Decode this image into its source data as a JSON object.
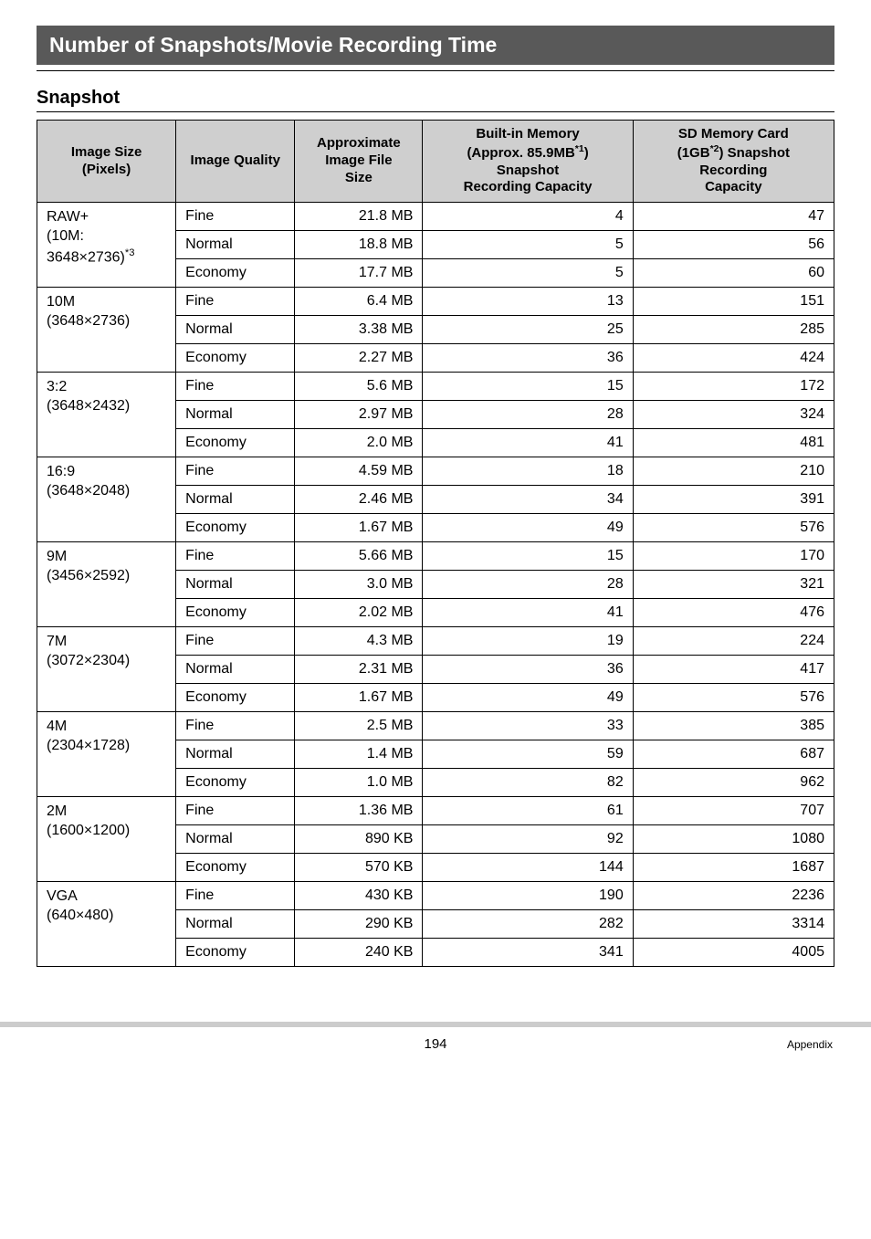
{
  "title": "Number of Snapshots/Movie Recording Time",
  "subheading": "Snapshot",
  "columns": {
    "c1": "Image Size\n(Pixels)",
    "c2": "Image Quality",
    "c3": "Approximate\nImage File\nSize",
    "c4_pre": "Built-in Memory\n(Approx. 85.9MB",
    "c4_sup": "*1",
    "c4_post": ")\nSnapshot\nRecording Capacity",
    "c5_pre": "SD Memory Card\n(1GB",
    "c5_sup": "*2",
    "c5_post": ") Snapshot\nRecording\nCapacity"
  },
  "groups": [
    {
      "label_pre": "RAW+\n(10M:\n3648×2736)",
      "label_sup": "*3",
      "rows": [
        {
          "q": "Fine",
          "fs": "21.8 MB",
          "bi": "4",
          "sd": "47"
        },
        {
          "q": "Normal",
          "fs": "18.8 MB",
          "bi": "5",
          "sd": "56"
        },
        {
          "q": "Economy",
          "fs": "17.7 MB",
          "bi": "5",
          "sd": "60"
        }
      ]
    },
    {
      "label_pre": "10M\n(3648×2736)",
      "rows": [
        {
          "q": "Fine",
          "fs": "6.4 MB",
          "bi": "13",
          "sd": "151"
        },
        {
          "q": "Normal",
          "fs": "3.38 MB",
          "bi": "25",
          "sd": "285"
        },
        {
          "q": "Economy",
          "fs": "2.27 MB",
          "bi": "36",
          "sd": "424"
        }
      ]
    },
    {
      "label_pre": "3:2\n(3648×2432)",
      "rows": [
        {
          "q": "Fine",
          "fs": "5.6 MB",
          "bi": "15",
          "sd": "172"
        },
        {
          "q": "Normal",
          "fs": "2.97 MB",
          "bi": "28",
          "sd": "324"
        },
        {
          "q": "Economy",
          "fs": "2.0 MB",
          "bi": "41",
          "sd": "481"
        }
      ]
    },
    {
      "label_pre": "16:9\n(3648×2048)",
      "rows": [
        {
          "q": "Fine",
          "fs": "4.59 MB",
          "bi": "18",
          "sd": "210"
        },
        {
          "q": "Normal",
          "fs": "2.46 MB",
          "bi": "34",
          "sd": "391"
        },
        {
          "q": "Economy",
          "fs": "1.67 MB",
          "bi": "49",
          "sd": "576"
        }
      ]
    },
    {
      "label_pre": "9M\n(3456×2592)",
      "rows": [
        {
          "q": "Fine",
          "fs": "5.66 MB",
          "bi": "15",
          "sd": "170"
        },
        {
          "q": "Normal",
          "fs": "3.0 MB",
          "bi": "28",
          "sd": "321"
        },
        {
          "q": "Economy",
          "fs": "2.02 MB",
          "bi": "41",
          "sd": "476"
        }
      ]
    },
    {
      "label_pre": "7M\n(3072×2304)",
      "rows": [
        {
          "q": "Fine",
          "fs": "4.3 MB",
          "bi": "19",
          "sd": "224"
        },
        {
          "q": "Normal",
          "fs": "2.31 MB",
          "bi": "36",
          "sd": "417"
        },
        {
          "q": "Economy",
          "fs": "1.67 MB",
          "bi": "49",
          "sd": "576"
        }
      ]
    },
    {
      "label_pre": "4M\n(2304×1728)",
      "rows": [
        {
          "q": "Fine",
          "fs": "2.5 MB",
          "bi": "33",
          "sd": "385"
        },
        {
          "q": "Normal",
          "fs": "1.4 MB",
          "bi": "59",
          "sd": "687"
        },
        {
          "q": "Economy",
          "fs": "1.0 MB",
          "bi": "82",
          "sd": "962"
        }
      ]
    },
    {
      "label_pre": "2M\n(1600×1200)",
      "rows": [
        {
          "q": "Fine",
          "fs": "1.36 MB",
          "bi": "61",
          "sd": "707"
        },
        {
          "q": "Normal",
          "fs": "890 KB",
          "bi": "92",
          "sd": "1080"
        },
        {
          "q": "Economy",
          "fs": "570 KB",
          "bi": "144",
          "sd": "1687"
        }
      ]
    },
    {
      "label_pre": "VGA\n(640×480)",
      "rows": [
        {
          "q": "Fine",
          "fs": "430 KB",
          "bi": "190",
          "sd": "2236"
        },
        {
          "q": "Normal",
          "fs": "290 KB",
          "bi": "282",
          "sd": "3314"
        },
        {
          "q": "Economy",
          "fs": "240 KB",
          "bi": "341",
          "sd": "4005"
        }
      ]
    }
  ],
  "footer": {
    "page": "194",
    "section": "Appendix"
  }
}
